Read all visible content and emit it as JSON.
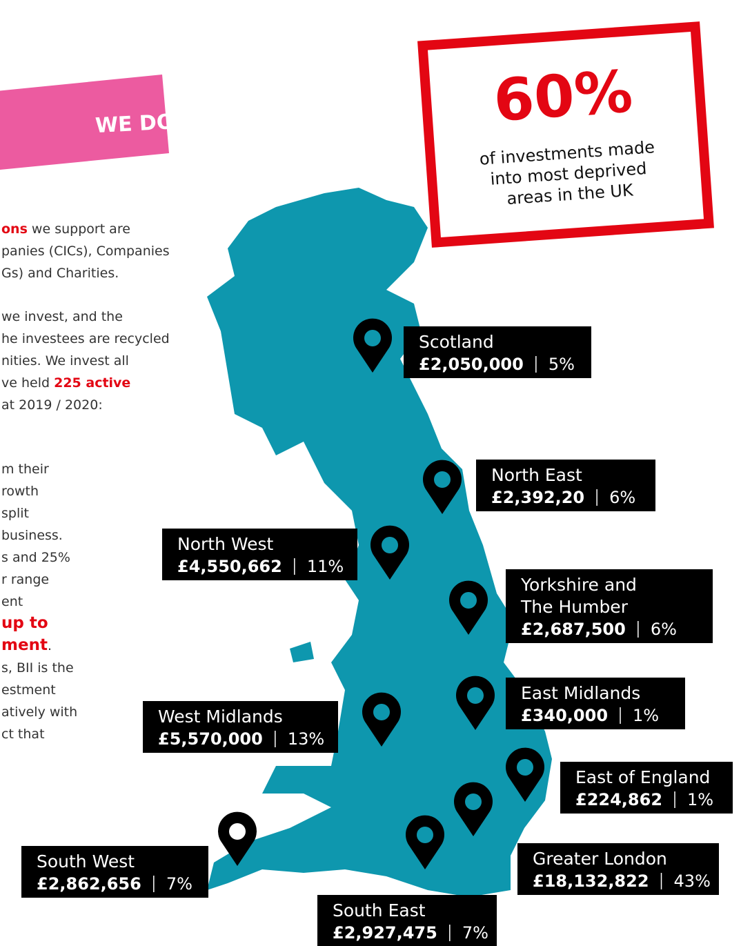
{
  "banner": {
    "text": "WE DO:"
  },
  "stat": {
    "value": "60%",
    "lines": [
      "of investments made",
      "into most deprived",
      "areas in the UK"
    ]
  },
  "text": {
    "paragraphs": [
      [
        [
          {
            "text": "ons",
            "emphasis": true
          },
          {
            "text": " we support are"
          }
        ],
        [
          {
            "text": "panies (CICs), Companies"
          }
        ],
        [
          {
            "text": "Gs) and Charities."
          }
        ]
      ],
      [
        [
          {
            "text": "we invest, and the"
          }
        ],
        [
          {
            "text": "he investees are recycled"
          }
        ],
        [
          {
            "text": "nities. We invest all"
          }
        ],
        [
          {
            "text": "ve held "
          },
          {
            "text": "225 active",
            "emphasis": true
          }
        ],
        [
          {
            "text": "at 2019 / 2020:"
          }
        ]
      ],
      [
        [
          {
            "text": "m their"
          }
        ],
        [
          {
            "text": "rowth"
          }
        ],
        [
          {
            "text": "split"
          }
        ],
        [
          {
            "text": " business."
          }
        ],
        [
          {
            "text": "s and 25%"
          }
        ],
        [
          {
            "text": "r range"
          }
        ],
        [
          {
            "text": "ent"
          }
        ],
        [
          {
            "text": "up to",
            "emphasis": true
          }
        ],
        [
          {
            "text": "ment",
            "emphasis": true
          },
          {
            "text": "."
          }
        ],
        [
          {
            "text": "s, BII is the"
          }
        ],
        [
          {
            "text": "estment"
          }
        ],
        [
          {
            "text": "atively with"
          }
        ],
        [
          {
            "text": "ct that"
          }
        ]
      ]
    ]
  },
  "regions": [
    {
      "name": [
        "Scotland"
      ],
      "amount": "£2,050,000",
      "percent": "5%"
    },
    {
      "name": [
        "North East"
      ],
      "amount": "£2,392,20",
      "percent": "6%"
    },
    {
      "name": [
        "North West"
      ],
      "amount": "£4,550,662",
      "percent": "11%"
    },
    {
      "name": [
        "Yorkshire and",
        "The Humber"
      ],
      "amount": "£2,687,500",
      "percent": "6%"
    },
    {
      "name": [
        "East Midlands"
      ],
      "amount": "£340,000",
      "percent": "1%"
    },
    {
      "name": [
        "West Midlands"
      ],
      "amount": "£5,570,000",
      "percent": "13%"
    },
    {
      "name": [
        "East of England"
      ],
      "amount": "£224,862",
      "percent": "1%"
    },
    {
      "name": [
        "Greater London"
      ],
      "amount": "£18,132,822",
      "percent": "43%"
    },
    {
      "name": [
        "South West"
      ],
      "amount": "£2,862,656",
      "percent": "7%"
    },
    {
      "name": [
        "South East"
      ],
      "amount": "£2,927,475",
      "percent": "7%"
    }
  ]
}
